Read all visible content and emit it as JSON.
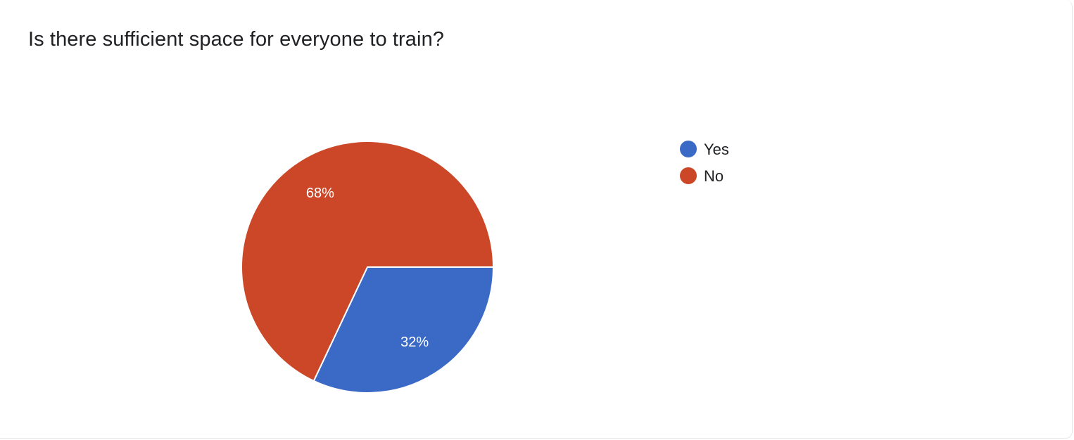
{
  "chart_data": {
    "type": "pie",
    "title": "Is there sufficient space for everyone to train?",
    "categories": [
      "Yes",
      "No"
    ],
    "values": [
      32,
      68
    ],
    "data_labels": [
      "32%",
      "68%"
    ],
    "colors": [
      "#3b69c6",
      "#cb4728"
    ],
    "legend_placement": "right"
  }
}
